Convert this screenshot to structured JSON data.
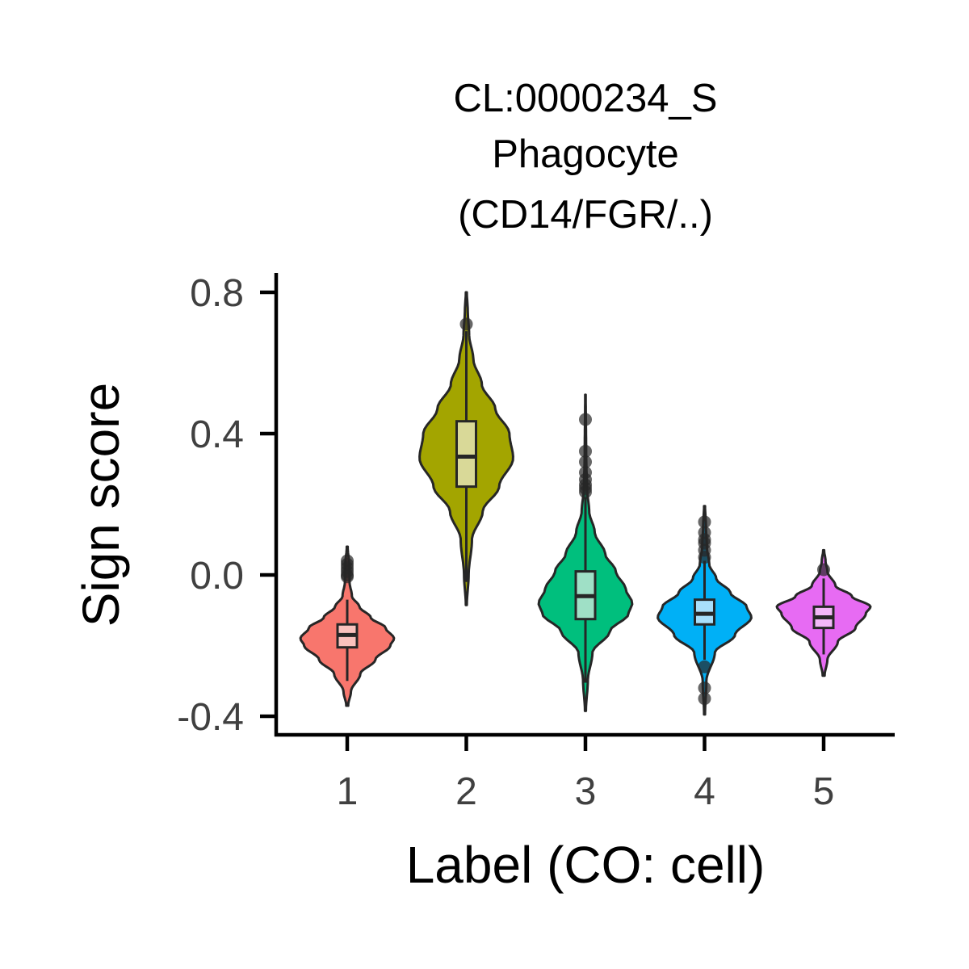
{
  "chart_data": {
    "type": "violin",
    "title": [
      "CL:0000234_S",
      "Phagocyte",
      "(CD14/FGR/..)"
    ],
    "xlabel": "Label (CO: cell)",
    "ylabel": "Sign score",
    "categories": [
      "1",
      "2",
      "3",
      "4",
      "5"
    ],
    "ylim": [
      -0.44,
      0.85
    ],
    "yticks": [
      -0.4,
      0.0,
      0.4,
      0.8
    ],
    "ytick_labels": [
      "-0.4",
      "0.0",
      "0.4",
      "0.8"
    ],
    "grid": false,
    "legend": "none",
    "series": [
      {
        "category": "1",
        "color": "#F8766D",
        "box_fill": "#F9C1BD",
        "min": -0.37,
        "max": 0.08,
        "q1": -0.205,
        "median": -0.17,
        "q3": -0.14,
        "whisker_low": -0.3,
        "whisker_high": -0.07,
        "outliers": [
          0.04,
          0.03,
          0.02,
          0.01,
          0.0,
          -0.005
        ],
        "density": [
          [
            -0.37,
            0.02
          ],
          [
            -0.33,
            0.08
          ],
          [
            -0.28,
            0.28
          ],
          [
            -0.24,
            0.6
          ],
          [
            -0.2,
            0.92
          ],
          [
            -0.18,
            1.0
          ],
          [
            -0.15,
            0.82
          ],
          [
            -0.12,
            0.5
          ],
          [
            -0.09,
            0.26
          ],
          [
            -0.06,
            0.1
          ],
          [
            -0.02,
            0.05
          ],
          [
            0.03,
            0.04
          ],
          [
            0.08,
            0.01
          ]
        ]
      },
      {
        "category": "2",
        "color": "#A3A500",
        "box_fill": "#D9D998",
        "min": -0.085,
        "max": 0.8,
        "q1": 0.25,
        "median": 0.335,
        "q3": 0.435,
        "whisker_low": -0.02,
        "whisker_high": 0.69,
        "outliers": [
          0.71
        ],
        "density": [
          [
            -0.085,
            0.01
          ],
          [
            0.0,
            0.05
          ],
          [
            0.1,
            0.12
          ],
          [
            0.18,
            0.35
          ],
          [
            0.25,
            0.7
          ],
          [
            0.33,
            1.0
          ],
          [
            0.4,
            0.92
          ],
          [
            0.47,
            0.62
          ],
          [
            0.54,
            0.33
          ],
          [
            0.61,
            0.15
          ],
          [
            0.68,
            0.06
          ],
          [
            0.75,
            0.03
          ],
          [
            0.8,
            0.01
          ]
        ]
      },
      {
        "category": "3",
        "color": "#00BF7D",
        "box_fill": "#9FE0C6",
        "min": -0.385,
        "max": 0.51,
        "q1": -0.125,
        "median": -0.06,
        "q3": 0.01,
        "whisker_low": -0.305,
        "whisker_high": 0.22,
        "outliers": [
          0.44,
          0.35,
          0.32,
          0.29,
          0.27,
          0.255,
          0.245,
          0.235
        ],
        "density": [
          [
            -0.385,
            0.01
          ],
          [
            -0.3,
            0.05
          ],
          [
            -0.22,
            0.15
          ],
          [
            -0.16,
            0.52
          ],
          [
            -0.11,
            0.92
          ],
          [
            -0.08,
            1.0
          ],
          [
            -0.04,
            0.86
          ],
          [
            0.01,
            0.65
          ],
          [
            0.06,
            0.42
          ],
          [
            0.12,
            0.2
          ],
          [
            0.18,
            0.08
          ],
          [
            0.25,
            0.03
          ],
          [
            0.35,
            0.015
          ],
          [
            0.51,
            0.005
          ]
        ]
      },
      {
        "category": "4",
        "color": "#00B0F6",
        "box_fill": "#A8DFFB",
        "min": -0.395,
        "max": 0.195,
        "q1": -0.14,
        "median": -0.11,
        "q3": -0.07,
        "whisker_low": -0.24,
        "whisker_high": 0.04,
        "outliers": [
          0.15,
          0.12,
          0.1,
          0.09,
          0.07,
          0.05,
          -0.26,
          -0.32,
          -0.35
        ],
        "density": [
          [
            -0.395,
            0.01
          ],
          [
            -0.3,
            0.04
          ],
          [
            -0.22,
            0.22
          ],
          [
            -0.17,
            0.65
          ],
          [
            -0.12,
            1.0
          ],
          [
            -0.09,
            0.9
          ],
          [
            -0.05,
            0.55
          ],
          [
            -0.01,
            0.25
          ],
          [
            0.03,
            0.1
          ],
          [
            0.08,
            0.05
          ],
          [
            0.14,
            0.03
          ],
          [
            0.195,
            0.01
          ]
        ]
      },
      {
        "category": "5",
        "color": "#E76BF3",
        "box_fill": "#F3B8F8",
        "min": -0.285,
        "max": 0.07,
        "q1": -0.15,
        "median": -0.12,
        "q3": -0.09,
        "whisker_low": -0.225,
        "whisker_high": -0.01,
        "outliers": [
          0.015
        ],
        "density": [
          [
            -0.285,
            0.02
          ],
          [
            -0.24,
            0.08
          ],
          [
            -0.19,
            0.3
          ],
          [
            -0.15,
            0.68
          ],
          [
            -0.11,
            0.9
          ],
          [
            -0.09,
            1.0
          ],
          [
            -0.06,
            0.6
          ],
          [
            -0.03,
            0.25
          ],
          [
            0.01,
            0.08
          ],
          [
            0.04,
            0.04
          ],
          [
            0.07,
            0.01
          ]
        ]
      }
    ]
  }
}
